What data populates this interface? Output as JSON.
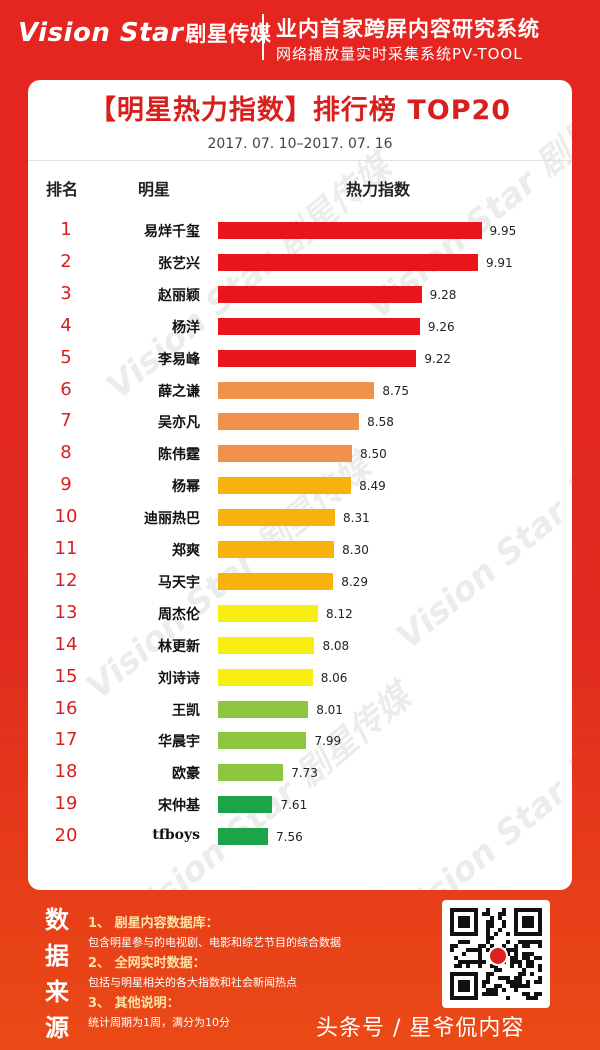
{
  "header": {
    "logo_text": "Vision Star",
    "logo_cn": "剧星传媒",
    "slogan": "业内首家跨屏内容研究系统",
    "slogan_sub": "网络播放量实时采集系统PV-TOOL"
  },
  "card": {
    "title": "【明星热力指数】排行榜 TOP20",
    "date_range": "2017. 07. 10–2017. 07. 16",
    "col_rank": "排名",
    "col_star": "明星",
    "col_index": "热力指数"
  },
  "chart_data": {
    "type": "bar",
    "orientation": "horizontal",
    "title": "【明星热力指数】排行榜 TOP20",
    "ranks": [
      1,
      2,
      3,
      4,
      5,
      6,
      7,
      8,
      9,
      10,
      11,
      12,
      13,
      14,
      15,
      16,
      17,
      18,
      19,
      20
    ],
    "categories": [
      "易烊千玺",
      "张艺兴",
      "赵丽颖",
      "杨洋",
      "李易峰",
      "薛之谦",
      "吴亦凡",
      "陈伟霆",
      "杨幂",
      "迪丽热巴",
      "郑爽",
      "马天宇",
      "周杰伦",
      "林更新",
      "刘诗诗",
      "王凯",
      "华晨宇",
      "欧豪",
      "宋仲基",
      "tfboys"
    ],
    "values": [
      9.95,
      9.91,
      9.28,
      9.26,
      9.22,
      8.75,
      8.58,
      8.5,
      8.49,
      8.31,
      8.3,
      8.29,
      8.12,
      8.08,
      8.06,
      8.01,
      7.99,
      7.73,
      7.61,
      7.56
    ],
    "value_labels": [
      "9.95",
      "9.91",
      "9.28",
      "9.26",
      "9.22",
      "8.75",
      "8.58",
      "8.50",
      "8.49",
      "8.31",
      "8.30",
      "8.29",
      "8.12",
      "8.08",
      "8.06",
      "8.01",
      "7.99",
      "7.73",
      "7.61",
      "7.56"
    ],
    "colors": [
      "#e8161a",
      "#e8161a",
      "#e8161a",
      "#e8161a",
      "#e8161a",
      "#f0924a",
      "#f0924a",
      "#f0924a",
      "#f7b20b",
      "#f7b20b",
      "#f7b20b",
      "#f7b20b",
      "#f9ee12",
      "#f9ee12",
      "#f9ee12",
      "#8dc63f",
      "#8dc63f",
      "#8dc63f",
      "#1ba548",
      "#1ba548"
    ],
    "xlim": [
      7.0,
      10.0
    ],
    "grid": false
  },
  "footer": {
    "side_label": [
      "数",
      "据",
      "来",
      "源"
    ],
    "notes": [
      {
        "title": "1、 剧星内容数据库：",
        "body": "包含明星参与的电视剧、电影和综艺节目的综合数据"
      },
      {
        "title": "2、 全网实时数据：",
        "body": "包括与明星相关的各大指数和社会新闻热点"
      },
      {
        "title": "3、 其他说明：",
        "body": "统计周期为1周，满分为10分"
      }
    ],
    "credit": "头条号 / 星爷侃内容"
  },
  "colors": {
    "brand_red": "#e52520",
    "title_red": "#d91e1e"
  }
}
